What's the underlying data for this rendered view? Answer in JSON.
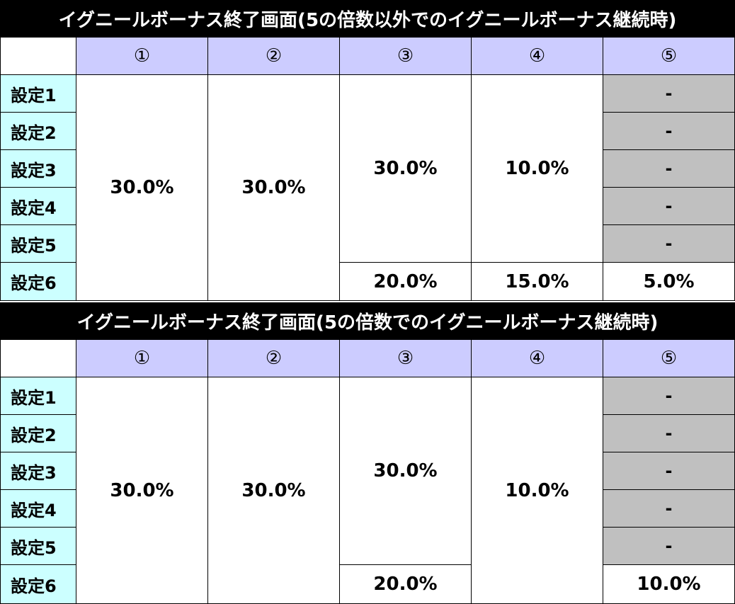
{
  "tables": [
    {
      "title": "イグニールボーナス終了画面(5の倍数以外でのイグニールボーナス継続時)",
      "columns": [
        "①",
        "②",
        "③",
        "④",
        "⑤"
      ],
      "settings": [
        "設定1",
        "設定2",
        "設定3",
        "設定4",
        "設定5",
        "設定6"
      ],
      "col1": "30.0%",
      "col2": "30.0%",
      "col3_s1_5": "30.0%",
      "col3_s6": "20.0%",
      "col4_s1_5": "10.0%",
      "col4_s6": "15.0%",
      "col5_s1_5": [
        "-",
        "-",
        "-",
        "-",
        "-"
      ],
      "col5_s6": "5.0%"
    },
    {
      "title": "イグニールボーナス終了画面(5の倍数でのイグニールボーナス継続時)",
      "columns": [
        "①",
        "②",
        "③",
        "④",
        "⑤"
      ],
      "settings": [
        "設定1",
        "設定2",
        "設定3",
        "設定4",
        "設定5",
        "設定6"
      ],
      "col1": "30.0%",
      "col2": "30.0%",
      "col3_s1_5": "30.0%",
      "col3_s6": "20.0%",
      "col4": "10.0%",
      "col5_s1_5": [
        "-",
        "-",
        "-",
        "-",
        "-"
      ],
      "col5_s6": "10.0%"
    }
  ]
}
